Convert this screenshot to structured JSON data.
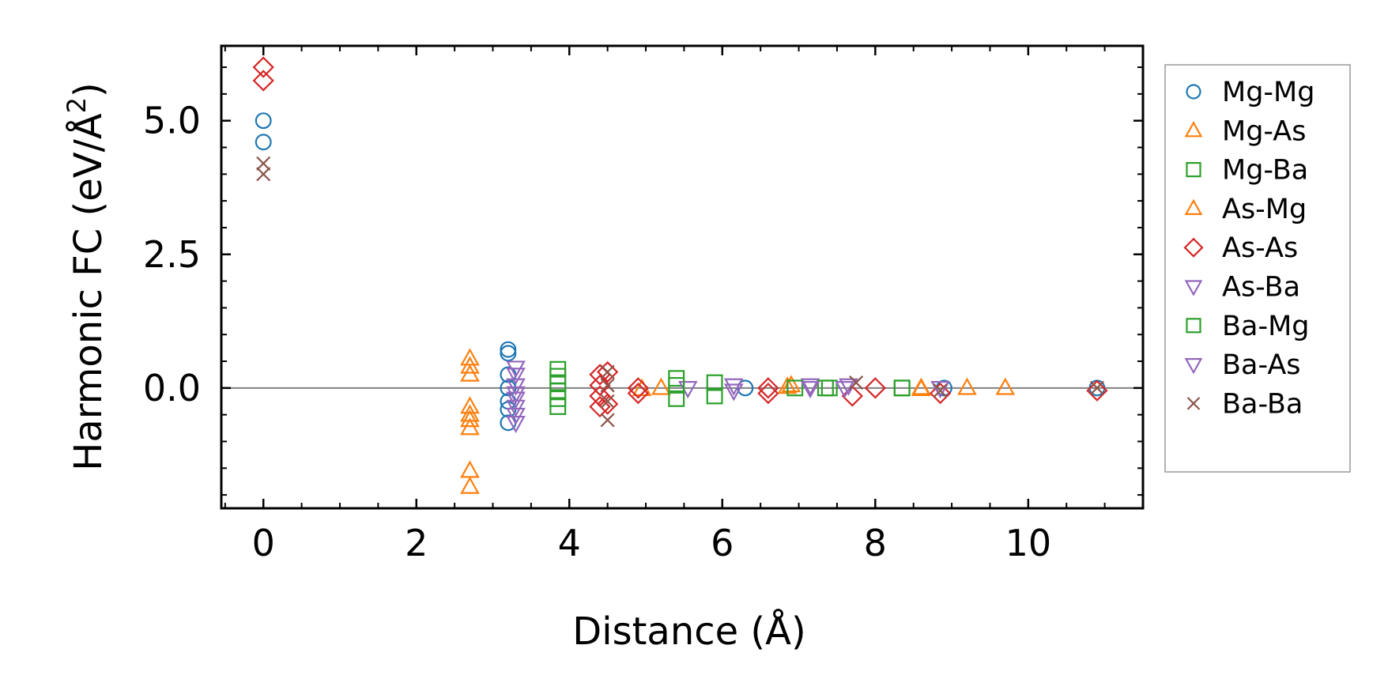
{
  "chart_data": {
    "type": "scatter",
    "title": "",
    "xlabel": "Distance (Å)",
    "ylabel_main": "Harmonic FC (eV/Å",
    "ylabel_sup": "2",
    "ylabel_close": ")",
    "xlim": [
      -0.55,
      11.5
    ],
    "ylim": [
      -2.25,
      6.4
    ],
    "xticks": [
      0,
      2,
      4,
      6,
      8,
      10
    ],
    "xtick_labels": [
      "0",
      "2",
      "4",
      "6",
      "8",
      "10"
    ],
    "yticks": [
      0.0,
      2.5,
      5.0
    ],
    "ytick_labels": [
      "0.0",
      "2.5",
      "5.0"
    ],
    "zero_line": 0,
    "legend_position": "outside-right",
    "series": [
      {
        "name": "Mg-Mg",
        "marker": "circle",
        "color": "#1f77b4",
        "points": [
          [
            0,
            5.0
          ],
          [
            0,
            4.6
          ],
          [
            3.2,
            0.72
          ],
          [
            3.2,
            0.65
          ],
          [
            3.2,
            0.25
          ],
          [
            3.2,
            0.0
          ],
          [
            3.2,
            -0.25
          ],
          [
            3.2,
            -0.4
          ],
          [
            3.2,
            -0.65
          ],
          [
            6.3,
            0.0
          ],
          [
            8.9,
            0.0
          ],
          [
            10.9,
            0.0
          ]
        ]
      },
      {
        "name": "Mg-As",
        "marker": "triangle-up",
        "color": "#ff7f0e",
        "points": [
          [
            2.7,
            0.55
          ],
          [
            2.7,
            0.4
          ],
          [
            2.7,
            0.25
          ],
          [
            2.7,
            -0.35
          ],
          [
            2.7,
            -0.5
          ],
          [
            2.7,
            -0.6
          ],
          [
            2.7,
            -0.75
          ],
          [
            2.7,
            -1.55
          ],
          [
            2.7,
            -1.85
          ],
          [
            5.2,
            0.0
          ],
          [
            6.9,
            0.05
          ],
          [
            8.6,
            0.0
          ],
          [
            9.2,
            0.0
          ],
          [
            9.7,
            0.0
          ]
        ]
      },
      {
        "name": "Mg-Ba",
        "marker": "square",
        "color": "#2ca02c",
        "points": [
          [
            3.85,
            0.35
          ],
          [
            3.85,
            0.22
          ],
          [
            3.85,
            0.1
          ],
          [
            3.85,
            -0.05
          ],
          [
            3.85,
            -0.2
          ],
          [
            3.85,
            -0.35
          ],
          [
            5.4,
            0.18
          ],
          [
            5.4,
            -0.2
          ],
          [
            5.9,
            0.1
          ],
          [
            5.9,
            -0.15
          ],
          [
            7.4,
            0.0
          ],
          [
            8.35,
            0.0
          ]
        ]
      },
      {
        "name": "As-Mg",
        "marker": "triangle-up",
        "color": "#ff7f0e",
        "points": [
          [
            4.95,
            -0.02
          ],
          [
            6.85,
            0.02
          ],
          [
            8.6,
            -0.02
          ]
        ]
      },
      {
        "name": "As-As",
        "marker": "diamond",
        "color": "#d62728",
        "points": [
          [
            0,
            6.0
          ],
          [
            0,
            5.75
          ],
          [
            4.4,
            0.25
          ],
          [
            4.4,
            0.05
          ],
          [
            4.4,
            -0.15
          ],
          [
            4.4,
            -0.35
          ],
          [
            4.5,
            0.3
          ],
          [
            4.5,
            -0.3
          ],
          [
            4.9,
            0.0
          ],
          [
            4.9,
            -0.1
          ],
          [
            6.6,
            0.0
          ],
          [
            6.6,
            -0.1
          ],
          [
            7.7,
            -0.15
          ],
          [
            8.0,
            0.0
          ],
          [
            8.85,
            -0.1
          ],
          [
            10.9,
            -0.05
          ]
        ]
      },
      {
        "name": "As-Ba",
        "marker": "triangle-down",
        "color": "#9467bd",
        "points": [
          [
            3.3,
            0.38
          ],
          [
            3.3,
            0.25
          ],
          [
            3.3,
            -0.2
          ],
          [
            3.3,
            -0.35
          ],
          [
            3.3,
            -0.5
          ],
          [
            3.3,
            -0.65
          ],
          [
            5.55,
            0.0
          ],
          [
            6.15,
            0.05
          ],
          [
            7.15,
            0.05
          ],
          [
            7.6,
            0.0
          ],
          [
            8.85,
            0.0
          ]
        ]
      },
      {
        "name": "Ba-Mg",
        "marker": "square",
        "color": "#2ca02c",
        "points": [
          [
            5.4,
            0.05
          ],
          [
            6.95,
            0.0
          ],
          [
            7.35,
            0.0
          ],
          [
            8.35,
            0.0
          ]
        ]
      },
      {
        "name": "Ba-As",
        "marker": "triangle-down",
        "color": "#9467bd",
        "points": [
          [
            3.3,
            0.05
          ],
          [
            3.3,
            -0.1
          ],
          [
            6.15,
            -0.05
          ],
          [
            7.15,
            0.0
          ],
          [
            7.65,
            0.05
          ]
        ]
      },
      {
        "name": "Ba-Ba",
        "marker": "x",
        "color": "#8c564b",
        "points": [
          [
            0,
            4.2
          ],
          [
            0,
            4.0
          ],
          [
            4.5,
            0.3
          ],
          [
            4.5,
            0.05
          ],
          [
            4.5,
            -0.25
          ],
          [
            4.5,
            -0.6
          ],
          [
            7.75,
            0.1
          ],
          [
            8.85,
            -0.05
          ],
          [
            10.9,
            0.0
          ]
        ]
      }
    ]
  }
}
